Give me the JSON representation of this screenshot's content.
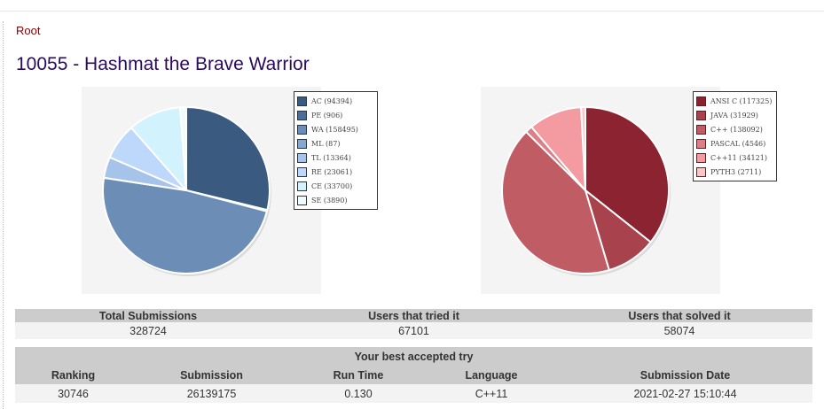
{
  "breadcrumb": "Root",
  "problem_title": "10055 - Hashmat the Brave Warrior",
  "chart_data": [
    {
      "type": "pie",
      "title": "",
      "legend_position": "right",
      "categories": [
        "AC (94394)",
        "PE (906)",
        "WA (158495)",
        "ML (87)",
        "TL (13364)",
        "RE (23061)",
        "CE (33700)",
        "SE (3890)"
      ],
      "values": [
        94394,
        906,
        158495,
        87,
        13364,
        23061,
        33700,
        3890
      ],
      "colors": [
        "#3b5a80",
        "#4e6d96",
        "#6c8db5",
        "#89a6cc",
        "#a6c4ea",
        "#bed8fb",
        "#d2f2fd",
        "#eefcff"
      ]
    },
    {
      "type": "pie",
      "title": "",
      "legend_position": "right",
      "categories": [
        "ANSI C (117325)",
        "JAVA (31929)",
        "C++ (138092)",
        "PASCAL (4546)",
        "C++11 (34121)",
        "PYTH3 (2711)"
      ],
      "values": [
        117325,
        31929,
        138092,
        4546,
        34121,
        2711
      ],
      "colors": [
        "#8b2430",
        "#a8434d",
        "#c05c64",
        "#dc7f86",
        "#f49ba1",
        "#fcc5c8"
      ]
    }
  ],
  "summary": {
    "headers": [
      "Total Submissions",
      "Users that tried it",
      "Users that solved it"
    ],
    "values": [
      "328724",
      "67101",
      "58074"
    ]
  },
  "best_try": {
    "caption": "Your best accepted try",
    "headers": [
      "Ranking",
      "Submission",
      "Run Time",
      "Language",
      "Submission Date"
    ],
    "values": [
      "30746",
      "26139175",
      "0.130",
      "C++11",
      "2021-02-27 15:10:44"
    ]
  }
}
